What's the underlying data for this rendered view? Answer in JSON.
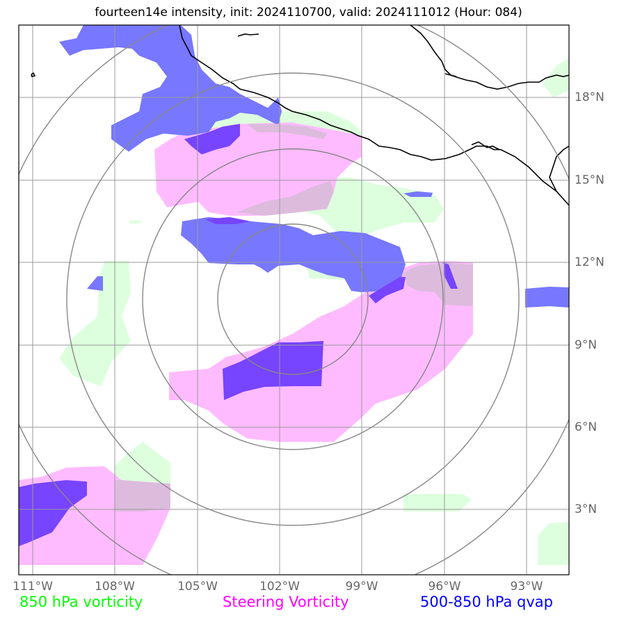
{
  "title": "fourteen14e intensity, init: 2024110700, valid: 2024111012 (Hour: 084)",
  "axes": {
    "lon_ticks": [
      "111°W",
      "108°W",
      "105°W",
      "102°W",
      "99°W",
      "96°W",
      "93°W"
    ],
    "lat_ticks": [
      "18°N",
      "15°N",
      "12°N",
      "9°N",
      "6°N",
      "3°N"
    ]
  },
  "legend": [
    {
      "label": "850 hPa vorticity",
      "color": "#00ff00"
    },
    {
      "label": "Steering Vorticity",
      "color": "#ff00ff"
    },
    {
      "label": "500-850 hPa qvap",
      "color": "#0000ff"
    }
  ],
  "layer_colors": {
    "vorticity_850": "#ddffdd",
    "steering_vorticity": "#ffbbff",
    "qvap": "#7777ff",
    "qvap_dense": "#7744ff"
  }
}
